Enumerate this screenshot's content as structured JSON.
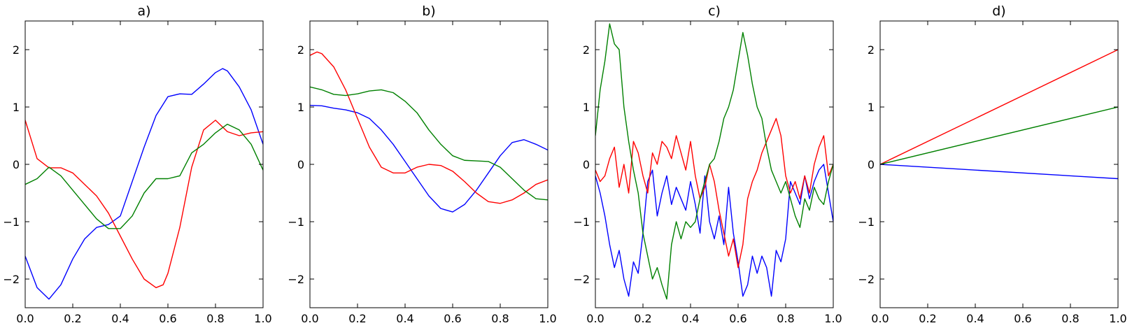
{
  "chart_data": [
    {
      "type": "line",
      "title": "a)",
      "xlabel": "",
      "ylabel": "",
      "xlim": [
        0,
        1
      ],
      "ylim": [
        -2.5,
        2.5
      ],
      "xticks": [
        "0.0",
        "0.2",
        "0.4",
        "0.6",
        "0.8",
        "1.0"
      ],
      "yticks": [
        "2",
        "1",
        "0",
        "−1",
        "−2"
      ],
      "grid": false,
      "series": [
        {
          "color": "#0000ff",
          "x": [
            0,
            0.05,
            0.1,
            0.15,
            0.2,
            0.25,
            0.3,
            0.35,
            0.4,
            0.45,
            0.5,
            0.55,
            0.6,
            0.65,
            0.7,
            0.75,
            0.8,
            0.83,
            0.85,
            0.9,
            0.95,
            1.0
          ],
          "y": [
            -1.6,
            -2.15,
            -2.35,
            -2.1,
            -1.65,
            -1.3,
            -1.1,
            -1.05,
            -0.9,
            -0.3,
            0.3,
            0.85,
            1.18,
            1.23,
            1.22,
            1.4,
            1.6,
            1.67,
            1.63,
            1.35,
            0.95,
            0.35
          ]
        },
        {
          "color": "#ff0000",
          "x": [
            0,
            0.05,
            0.1,
            0.15,
            0.2,
            0.25,
            0.3,
            0.35,
            0.4,
            0.45,
            0.5,
            0.55,
            0.58,
            0.6,
            0.65,
            0.7,
            0.75,
            0.8,
            0.85,
            0.9,
            0.95,
            1.0
          ],
          "y": [
            0.77,
            0.1,
            -0.06,
            -0.06,
            -0.15,
            -0.35,
            -0.55,
            -0.85,
            -1.25,
            -1.65,
            -2.0,
            -2.15,
            -2.1,
            -1.9,
            -1.1,
            -0.05,
            0.6,
            0.77,
            0.57,
            0.5,
            0.55,
            0.57
          ]
        },
        {
          "color": "#008000",
          "x": [
            0,
            0.05,
            0.1,
            0.15,
            0.2,
            0.25,
            0.3,
            0.35,
            0.4,
            0.45,
            0.5,
            0.55,
            0.6,
            0.65,
            0.7,
            0.75,
            0.8,
            0.85,
            0.9,
            0.95,
            1.0
          ],
          "y": [
            -0.35,
            -0.25,
            -0.05,
            -0.2,
            -0.45,
            -0.7,
            -0.95,
            -1.12,
            -1.12,
            -0.9,
            -0.5,
            -0.25,
            -0.25,
            -0.2,
            0.2,
            0.35,
            0.55,
            0.7,
            0.6,
            0.35,
            -0.1
          ]
        }
      ]
    },
    {
      "type": "line",
      "title": "b)",
      "xlabel": "",
      "ylabel": "",
      "xlim": [
        0,
        1
      ],
      "ylim": [
        -2.5,
        2.5
      ],
      "xticks": [
        "0.0",
        "0.2",
        "0.4",
        "0.6",
        "0.8",
        "1.0"
      ],
      "yticks": [
        "2",
        "1",
        "0",
        "−1",
        "−2"
      ],
      "grid": false,
      "series": [
        {
          "color": "#0000ff",
          "x": [
            0,
            0.05,
            0.1,
            0.15,
            0.2,
            0.25,
            0.3,
            0.35,
            0.4,
            0.45,
            0.5,
            0.55,
            0.6,
            0.65,
            0.7,
            0.75,
            0.8,
            0.85,
            0.9,
            0.95,
            1.0
          ],
          "y": [
            1.03,
            1.02,
            0.98,
            0.95,
            0.9,
            0.8,
            0.6,
            0.35,
            0.05,
            -0.25,
            -0.55,
            -0.77,
            -0.83,
            -0.7,
            -0.45,
            -0.15,
            0.15,
            0.38,
            0.43,
            0.35,
            0.25
          ]
        },
        {
          "color": "#ff0000",
          "x": [
            0,
            0.03,
            0.05,
            0.1,
            0.15,
            0.2,
            0.25,
            0.3,
            0.35,
            0.4,
            0.45,
            0.5,
            0.55,
            0.6,
            0.65,
            0.7,
            0.75,
            0.8,
            0.85,
            0.9,
            0.95,
            1.0
          ],
          "y": [
            1.9,
            1.96,
            1.93,
            1.7,
            1.3,
            0.8,
            0.3,
            -0.05,
            -0.15,
            -0.15,
            -0.05,
            0.0,
            -0.02,
            -0.12,
            -0.3,
            -0.5,
            -0.65,
            -0.68,
            -0.62,
            -0.5,
            -0.35,
            -0.27
          ]
        },
        {
          "color": "#008000",
          "x": [
            0,
            0.05,
            0.1,
            0.15,
            0.2,
            0.25,
            0.3,
            0.35,
            0.4,
            0.45,
            0.5,
            0.55,
            0.6,
            0.65,
            0.7,
            0.75,
            0.8,
            0.85,
            0.9,
            0.95,
            1.0
          ],
          "y": [
            1.35,
            1.3,
            1.22,
            1.2,
            1.23,
            1.28,
            1.3,
            1.25,
            1.1,
            0.9,
            0.6,
            0.35,
            0.15,
            0.07,
            0.06,
            0.05,
            -0.05,
            -0.25,
            -0.45,
            -0.6,
            -0.62
          ]
        }
      ]
    },
    {
      "type": "line",
      "title": "c)",
      "xlabel": "",
      "ylabel": "",
      "xlim": [
        0,
        1
      ],
      "ylim": [
        -2.5,
        2.5
      ],
      "xticks": [
        "0.0",
        "0.2",
        "0.4",
        "0.6",
        "0.8",
        "1.0"
      ],
      "yticks": [
        "2",
        "1",
        "0",
        "−1",
        "−2"
      ],
      "grid": false,
      "series": [
        {
          "color": "#0000ff",
          "x": [
            0,
            0.02,
            0.04,
            0.06,
            0.08,
            0.1,
            0.12,
            0.14,
            0.16,
            0.18,
            0.2,
            0.22,
            0.24,
            0.26,
            0.28,
            0.3,
            0.32,
            0.34,
            0.36,
            0.38,
            0.4,
            0.42,
            0.44,
            0.46,
            0.48,
            0.5,
            0.52,
            0.54,
            0.56,
            0.58,
            0.6,
            0.62,
            0.64,
            0.66,
            0.68,
            0.7,
            0.72,
            0.74,
            0.76,
            0.78,
            0.8,
            0.82,
            0.84,
            0.86,
            0.88,
            0.9,
            0.92,
            0.94,
            0.96,
            0.98,
            1.0
          ],
          "y": [
            -0.2,
            -0.5,
            -0.9,
            -1.4,
            -1.8,
            -1.5,
            -2.0,
            -2.3,
            -1.7,
            -1.9,
            -1.2,
            -0.3,
            -0.1,
            -0.9,
            -0.5,
            -0.2,
            -0.7,
            -0.4,
            -0.6,
            -0.8,
            -0.3,
            -0.7,
            -1.2,
            -0.2,
            -1.0,
            -1.3,
            -0.9,
            -1.4,
            -0.4,
            -1.2,
            -1.7,
            -2.3,
            -2.1,
            -1.6,
            -1.9,
            -1.6,
            -1.8,
            -2.3,
            -1.5,
            -1.7,
            -1.3,
            -0.3,
            -0.5,
            -0.7,
            -0.2,
            -0.6,
            -0.3,
            -0.1,
            0.0,
            -0.5,
            -1.0
          ]
        },
        {
          "color": "#ff0000",
          "x": [
            0,
            0.02,
            0.04,
            0.06,
            0.08,
            0.1,
            0.12,
            0.14,
            0.16,
            0.18,
            0.2,
            0.22,
            0.24,
            0.26,
            0.28,
            0.3,
            0.32,
            0.34,
            0.36,
            0.38,
            0.4,
            0.42,
            0.44,
            0.46,
            0.48,
            0.5,
            0.52,
            0.54,
            0.56,
            0.58,
            0.6,
            0.62,
            0.64,
            0.66,
            0.68,
            0.7,
            0.72,
            0.74,
            0.76,
            0.78,
            0.8,
            0.82,
            0.84,
            0.86,
            0.88,
            0.9,
            0.92,
            0.94,
            0.96,
            0.98,
            1.0
          ],
          "y": [
            -0.1,
            -0.3,
            -0.2,
            0.1,
            0.3,
            -0.4,
            0.0,
            -0.5,
            0.4,
            0.2,
            -0.2,
            -0.5,
            0.2,
            0.0,
            0.4,
            0.3,
            0.1,
            0.5,
            0.2,
            -0.1,
            0.4,
            -0.2,
            -0.6,
            -0.4,
            0.0,
            -0.3,
            -0.8,
            -1.2,
            -1.6,
            -1.3,
            -1.8,
            -1.4,
            -0.6,
            -0.3,
            -0.1,
            0.2,
            0.4,
            0.6,
            0.8,
            0.5,
            -0.2,
            -0.5,
            -0.3,
            -0.6,
            -0.2,
            -0.5,
            0.0,
            0.3,
            0.5,
            -0.2,
            0.0
          ]
        },
        {
          "color": "#008000",
          "x": [
            0,
            0.02,
            0.04,
            0.06,
            0.08,
            0.1,
            0.12,
            0.14,
            0.16,
            0.18,
            0.2,
            0.22,
            0.24,
            0.26,
            0.28,
            0.3,
            0.32,
            0.34,
            0.36,
            0.38,
            0.4,
            0.42,
            0.44,
            0.46,
            0.48,
            0.5,
            0.52,
            0.54,
            0.56,
            0.58,
            0.6,
            0.62,
            0.64,
            0.66,
            0.68,
            0.7,
            0.72,
            0.74,
            0.76,
            0.78,
            0.8,
            0.82,
            0.84,
            0.86,
            0.88,
            0.9,
            0.92,
            0.94,
            0.96,
            0.98,
            1.0
          ],
          "y": [
            0.5,
            1.3,
            1.8,
            2.45,
            2.1,
            2.0,
            1.0,
            0.4,
            -0.1,
            -0.5,
            -1.2,
            -1.6,
            -2.0,
            -1.8,
            -2.1,
            -2.35,
            -1.4,
            -1.0,
            -1.3,
            -1.0,
            -1.1,
            -1.0,
            -0.6,
            -0.3,
            0.0,
            0.1,
            0.4,
            0.8,
            1.0,
            1.3,
            1.8,
            2.3,
            1.9,
            1.4,
            1.0,
            0.8,
            0.3,
            -0.1,
            -0.3,
            -0.5,
            -0.3,
            -0.6,
            -0.9,
            -1.1,
            -0.6,
            -0.8,
            -0.4,
            -0.6,
            -0.7,
            -0.3,
            0.0
          ]
        }
      ]
    },
    {
      "type": "line",
      "title": "d)",
      "xlabel": "",
      "ylabel": "",
      "xlim": [
        0,
        1
      ],
      "ylim": [
        -2.5,
        2.5
      ],
      "xticks": [
        "0.0",
        "0.2",
        "0.4",
        "0.6",
        "0.8",
        "1.0"
      ],
      "yticks": [
        "2",
        "1",
        "0",
        "−1",
        "−2"
      ],
      "grid": false,
      "series": [
        {
          "color": "#ff0000",
          "x": [
            0,
            1
          ],
          "y": [
            0,
            2.0
          ]
        },
        {
          "color": "#008000",
          "x": [
            0,
            1
          ],
          "y": [
            0,
            1.0
          ]
        },
        {
          "color": "#0000ff",
          "x": [
            0,
            1
          ],
          "y": [
            0,
            -0.25
          ]
        }
      ]
    }
  ]
}
